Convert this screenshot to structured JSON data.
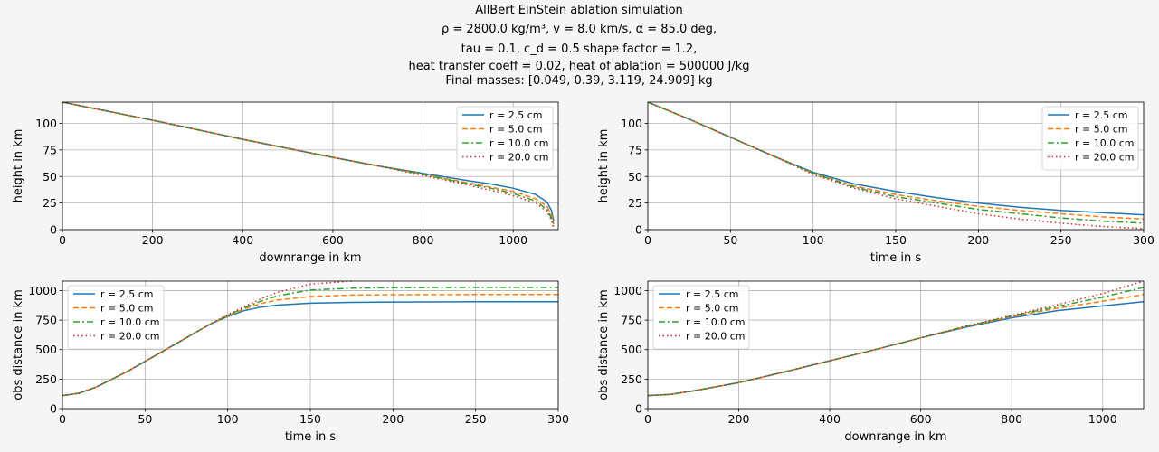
{
  "figure": {
    "title_lines": [
      "AllBert EinStein ablation simulation",
      "ρ = 2800.0 kg/m³, v = 8.0 km/s, α = 85.0 deg,",
      "tau = 0.1, c_d = 0.5 shape factor = 1.2,",
      "heat transfer coeff = 0.02, heat of ablation = 500000 J/kg",
      "Final masses: [0.049, 0.39, 3.119, 24.909] kg"
    ]
  },
  "colors": {
    "r = 2.5 cm": "#1f77b4",
    "r = 5.0 cm": "#ff7f0e",
    "r = 10.0 cm": "#2ca02c",
    "r = 20.0 cm": "#d62728"
  },
  "chart_data": [
    {
      "type": "line",
      "xlabel": "downrange in km",
      "ylabel": "height in km",
      "xlim": [
        0,
        1100
      ],
      "ylim": [
        0,
        120
      ],
      "xticks": [
        0,
        200,
        400,
        600,
        800,
        1000
      ],
      "yticks": [
        0,
        25,
        50,
        75,
        100
      ],
      "grid": true,
      "legend_position": "top-right",
      "series": [
        {
          "name": "r = 2.5 cm",
          "style": "solid",
          "x": [
            0,
            200,
            400,
            600,
            700,
            800,
            900,
            950,
            1000,
            1050,
            1075,
            1085,
            1090
          ],
          "y": [
            120,
            103,
            85,
            68,
            60,
            53,
            46,
            43,
            39,
            33,
            26,
            18,
            8
          ]
        },
        {
          "name": "r = 5.0 cm",
          "style": "dashed",
          "x": [
            0,
            200,
            400,
            600,
            700,
            800,
            900,
            950,
            1000,
            1050,
            1075,
            1085,
            1090
          ],
          "y": [
            120,
            103,
            85,
            68,
            60,
            52,
            44,
            40,
            36,
            29,
            22,
            14,
            5
          ]
        },
        {
          "name": "r = 10.0 cm",
          "style": "dashdot",
          "x": [
            0,
            200,
            400,
            600,
            700,
            800,
            900,
            950,
            1000,
            1050,
            1075,
            1085,
            1090
          ],
          "y": [
            120,
            103,
            85,
            68,
            60,
            52,
            43,
            39,
            34,
            27,
            19,
            11,
            3
          ]
        },
        {
          "name": "r = 20.0 cm",
          "style": "dotted",
          "x": [
            0,
            200,
            400,
            600,
            700,
            800,
            900,
            950,
            1000,
            1050,
            1075,
            1085,
            1090
          ],
          "y": [
            120,
            103,
            85,
            68,
            60,
            51,
            42,
            37,
            32,
            25,
            17,
            9,
            1
          ]
        }
      ]
    },
    {
      "type": "line",
      "xlabel": "time in s",
      "ylabel": "height in km",
      "xlim": [
        0,
        300
      ],
      "ylim": [
        0,
        120
      ],
      "xticks": [
        0,
        50,
        100,
        150,
        200,
        250,
        300
      ],
      "yticks": [
        0,
        25,
        50,
        75,
        100
      ],
      "grid": true,
      "legend_position": "top-right",
      "series": [
        {
          "name": "r = 2.5 cm",
          "style": "solid",
          "x": [
            0,
            25,
            50,
            75,
            100,
            125,
            150,
            175,
            200,
            225,
            250,
            275,
            300
          ],
          "y": [
            120,
            104,
            87,
            70,
            54,
            43,
            36,
            30,
            25,
            21,
            18,
            16,
            14
          ]
        },
        {
          "name": "r = 5.0 cm",
          "style": "dashed",
          "x": [
            0,
            25,
            50,
            75,
            100,
            125,
            150,
            175,
            200,
            225,
            250,
            275,
            300
          ],
          "y": [
            120,
            104,
            87,
            70,
            53,
            41,
            33,
            27,
            22,
            18,
            15,
            12,
            10
          ]
        },
        {
          "name": "r = 10.0 cm",
          "style": "dashdot",
          "x": [
            0,
            25,
            50,
            75,
            100,
            125,
            150,
            175,
            200,
            225,
            250,
            275,
            300
          ],
          "y": [
            120,
            104,
            87,
            70,
            53,
            40,
            31,
            25,
            19,
            15,
            11,
            8,
            6
          ]
        },
        {
          "name": "r = 20.0 cm",
          "style": "dotted",
          "x": [
            0,
            25,
            50,
            75,
            100,
            125,
            150,
            175,
            200,
            225,
            250,
            275,
            300
          ],
          "y": [
            120,
            104,
            87,
            70,
            52,
            39,
            29,
            22,
            15,
            10,
            6,
            3,
            1
          ]
        }
      ]
    },
    {
      "type": "line",
      "xlabel": "time in s",
      "ylabel": "obs distance in km",
      "xlim": [
        0,
        300
      ],
      "ylim": [
        0,
        1080
      ],
      "xticks": [
        0,
        50,
        100,
        150,
        200,
        250,
        300
      ],
      "yticks": [
        0,
        250,
        500,
        750,
        1000
      ],
      "grid": true,
      "legend_position": "top-left",
      "series": [
        {
          "name": "r = 2.5 cm",
          "style": "solid",
          "x": [
            0,
            10,
            20,
            30,
            40,
            50,
            60,
            70,
            80,
            90,
            100,
            110,
            120,
            130,
            150,
            175,
            200,
            250,
            300
          ],
          "y": [
            110,
            130,
            180,
            250,
            320,
            400,
            480,
            560,
            640,
            720,
            780,
            830,
            860,
            877,
            893,
            900,
            903,
            905,
            905
          ]
        },
        {
          "name": "r = 5.0 cm",
          "style": "dashed",
          "x": [
            0,
            10,
            20,
            30,
            40,
            50,
            60,
            70,
            80,
            90,
            100,
            110,
            120,
            130,
            150,
            175,
            200,
            250,
            300
          ],
          "y": [
            110,
            130,
            180,
            250,
            320,
            400,
            480,
            560,
            640,
            720,
            785,
            845,
            890,
            920,
            950,
            962,
            965,
            967,
            967
          ]
        },
        {
          "name": "r = 10.0 cm",
          "style": "dashdot",
          "x": [
            0,
            10,
            20,
            30,
            40,
            50,
            60,
            70,
            80,
            90,
            100,
            110,
            120,
            130,
            150,
            175,
            200,
            250,
            300
          ],
          "y": [
            110,
            130,
            180,
            250,
            320,
            400,
            480,
            560,
            640,
            720,
            790,
            855,
            910,
            955,
            1005,
            1020,
            1025,
            1027,
            1027
          ]
        },
        {
          "name": "r = 20.0 cm",
          "style": "dotted",
          "x": [
            0,
            10,
            20,
            30,
            40,
            50,
            60,
            70,
            80,
            90,
            100,
            110,
            120,
            130,
            150,
            175
          ],
          "y": [
            110,
            130,
            180,
            250,
            320,
            400,
            480,
            560,
            640,
            720,
            795,
            865,
            930,
            985,
            1055,
            1080
          ]
        }
      ]
    },
    {
      "type": "line",
      "xlabel": "downrange in km",
      "ylabel": "obs distance in km",
      "xlim": [
        0,
        1090
      ],
      "ylim": [
        0,
        1080
      ],
      "xticks": [
        0,
        200,
        400,
        600,
        800,
        1000
      ],
      "yticks": [
        0,
        250,
        500,
        750,
        1000
      ],
      "grid": true,
      "legend_position": "top-left",
      "series": [
        {
          "name": "r = 2.5 cm",
          "style": "solid",
          "x": [
            0,
            50,
            100,
            200,
            300,
            400,
            500,
            600,
            700,
            800,
            900,
            1000,
            1090
          ],
          "y": [
            110,
            120,
            150,
            220,
            310,
            405,
            500,
            600,
            690,
            770,
            830,
            870,
            905
          ]
        },
        {
          "name": "r = 5.0 cm",
          "style": "dashed",
          "x": [
            0,
            50,
            100,
            200,
            300,
            400,
            500,
            600,
            700,
            800,
            900,
            1000,
            1090
          ],
          "y": [
            110,
            120,
            150,
            220,
            310,
            405,
            500,
            600,
            695,
            780,
            850,
            910,
            967
          ]
        },
        {
          "name": "r = 10.0 cm",
          "style": "dashdot",
          "x": [
            0,
            50,
            100,
            200,
            300,
            400,
            500,
            600,
            700,
            800,
            900,
            1000,
            1090
          ],
          "y": [
            110,
            120,
            150,
            220,
            310,
            405,
            500,
            600,
            697,
            785,
            865,
            945,
            1027
          ]
        },
        {
          "name": "r = 20.0 cm",
          "style": "dotted",
          "x": [
            0,
            50,
            100,
            200,
            300,
            400,
            500,
            600,
            700,
            800,
            900,
            1000,
            1090
          ],
          "y": [
            110,
            120,
            150,
            220,
            310,
            405,
            500,
            600,
            700,
            790,
            880,
            975,
            1080
          ]
        }
      ]
    }
  ]
}
